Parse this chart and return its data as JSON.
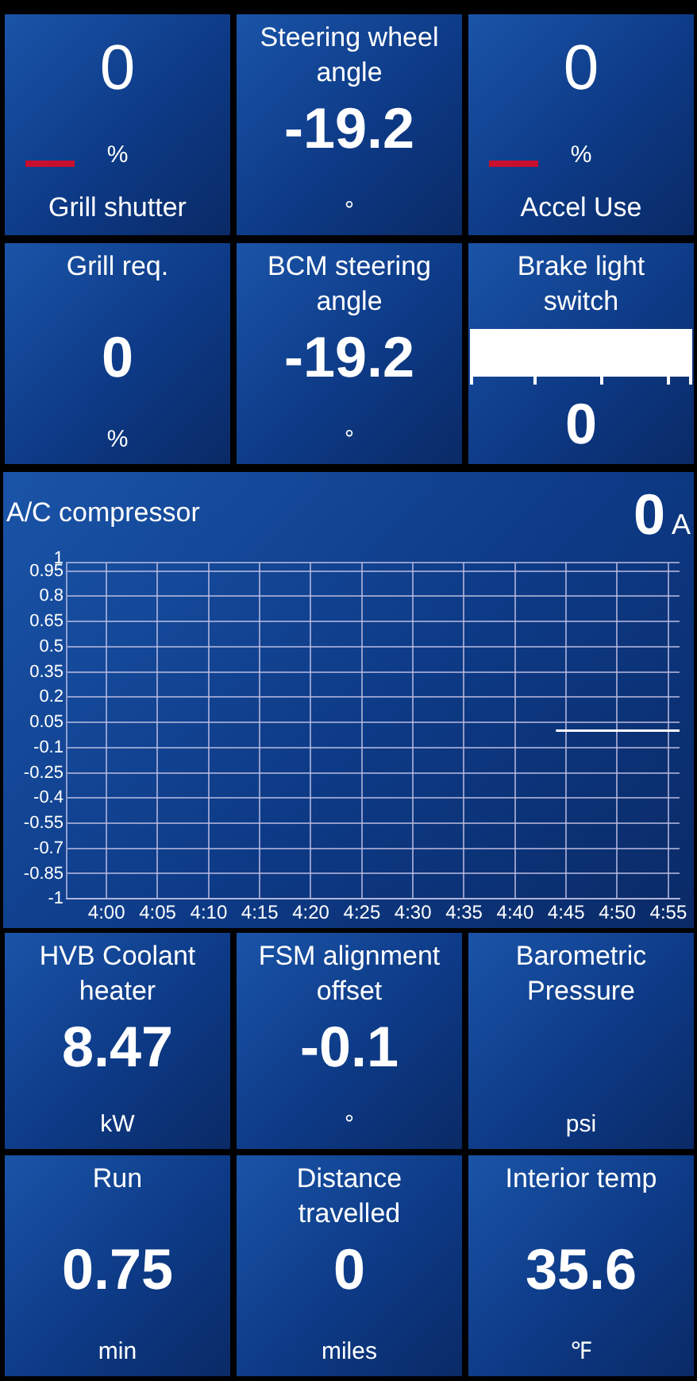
{
  "chart_data": [
    {
      "type": "other",
      "title": "Grill shutter",
      "annotations": [
        "0",
        "%"
      ]
    },
    {
      "type": "other",
      "title": "Steering wheel angle",
      "annotations": [
        "-19.2",
        "°"
      ]
    },
    {
      "type": "other",
      "title": "Accel Use",
      "annotations": [
        "0",
        "%"
      ]
    },
    {
      "type": "other",
      "title": "Grill req.",
      "annotations": [
        "0",
        "%"
      ]
    },
    {
      "type": "other",
      "title": "BCM steering angle",
      "annotations": [
        "-19.2",
        "°"
      ]
    },
    {
      "type": "other",
      "title": "Brake light switch",
      "annotations": [
        "0"
      ]
    },
    {
      "type": "line",
      "title": "A/C compressor",
      "annotations": [
        "0",
        "A"
      ],
      "x": [
        4.7333,
        4.935
      ],
      "values": [
        0,
        0
      ],
      "color": "#ffffff",
      "xlim": [
        3.935,
        4.935
      ],
      "xticks": [
        {
          "value": 4,
          "label": "4:00"
        },
        {
          "value": 4.0833,
          "label": "4:05"
        },
        {
          "value": 4.1667,
          "label": "4:10"
        },
        {
          "value": 4.25,
          "label": "4:15"
        },
        {
          "value": 4.3333,
          "label": "4:20"
        },
        {
          "value": 4.4167,
          "label": "4:25"
        },
        {
          "value": 4.5,
          "label": "4:30"
        },
        {
          "value": 4.5833,
          "label": "4:35"
        },
        {
          "value": 4.6667,
          "label": "4:40"
        },
        {
          "value": 4.75,
          "label": "4:45"
        },
        {
          "value": 4.8333,
          "label": "4:50"
        },
        {
          "value": 4.9167,
          "label": "4:55"
        }
      ],
      "ylim": [
        -1,
        1
      ],
      "yticks": [
        1,
        0.95,
        0.8,
        0.65,
        0.5,
        0.35,
        0.2,
        0.05,
        -0.1,
        -0.25,
        -0.4,
        -0.55,
        -0.7,
        -0.85,
        -1
      ],
      "grid": true
    },
    {
      "type": "other",
      "title": "HVB Coolant heater",
      "annotations": [
        "8.47",
        "kW"
      ]
    },
    {
      "type": "other",
      "title": "FSM alignment offset",
      "annotations": [
        "-0.1",
        "°"
      ]
    },
    {
      "type": "other",
      "title": "Barometric Pressure",
      "annotations": [
        "psi"
      ]
    },
    {
      "type": "other",
      "title": "Run",
      "annotations": [
        "0.75",
        "min"
      ]
    },
    {
      "type": "other",
      "title": "Distance travelled",
      "annotations": [
        "0",
        "miles"
      ]
    },
    {
      "type": "other",
      "title": "Interior temp",
      "annotations": [
        "35.6",
        "℉"
      ]
    }
  ]
}
